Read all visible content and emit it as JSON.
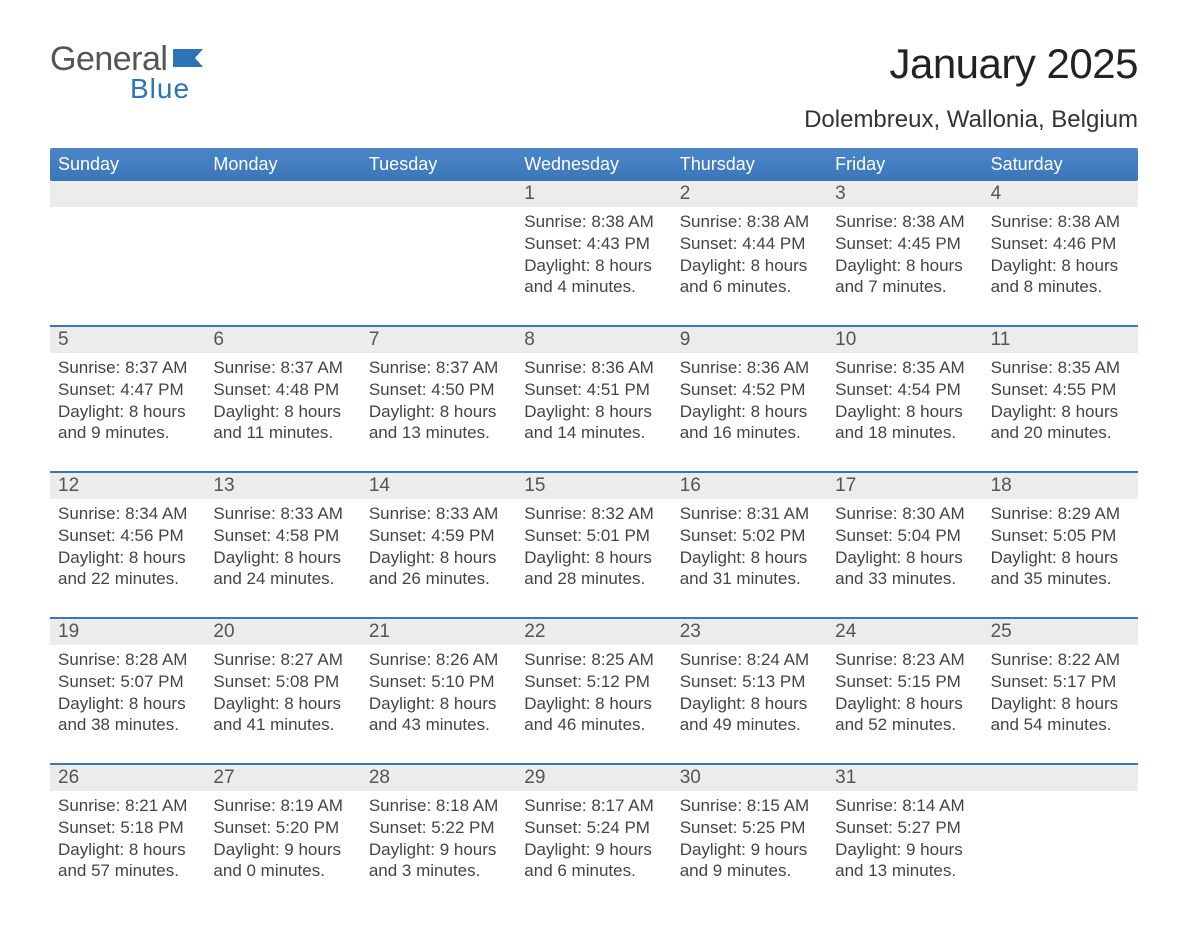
{
  "logo": {
    "word1": "General",
    "word2": "Blue",
    "color_text": "#555555",
    "color_blue": "#2b74b8"
  },
  "title": "January 2025",
  "location": "Dolembreux, Wallonia, Belgium",
  "style": {
    "header_gradient_top": "#4a86c8",
    "header_gradient_bottom": "#3b76b8",
    "divider_color": "#3b76b8",
    "daynum_bg": "#ececec",
    "background": "#ffffff",
    "title_fontsize": 42,
    "location_fontsize": 24,
    "weekday_fontsize": 18,
    "daynum_fontsize": 19,
    "body_fontsize": 17
  },
  "weekdays": [
    "Sunday",
    "Monday",
    "Tuesday",
    "Wednesday",
    "Thursday",
    "Friday",
    "Saturday"
  ],
  "weeks": [
    [
      null,
      null,
      null,
      {
        "n": "1",
        "sunrise": "8:38 AM",
        "sunset": "4:43 PM",
        "daylight": "8 hours and 4 minutes."
      },
      {
        "n": "2",
        "sunrise": "8:38 AM",
        "sunset": "4:44 PM",
        "daylight": "8 hours and 6 minutes."
      },
      {
        "n": "3",
        "sunrise": "8:38 AM",
        "sunset": "4:45 PM",
        "daylight": "8 hours and 7 minutes."
      },
      {
        "n": "4",
        "sunrise": "8:38 AM",
        "sunset": "4:46 PM",
        "daylight": "8 hours and 8 minutes."
      }
    ],
    [
      {
        "n": "5",
        "sunrise": "8:37 AM",
        "sunset": "4:47 PM",
        "daylight": "8 hours and 9 minutes."
      },
      {
        "n": "6",
        "sunrise": "8:37 AM",
        "sunset": "4:48 PM",
        "daylight": "8 hours and 11 minutes."
      },
      {
        "n": "7",
        "sunrise": "8:37 AM",
        "sunset": "4:50 PM",
        "daylight": "8 hours and 13 minutes."
      },
      {
        "n": "8",
        "sunrise": "8:36 AM",
        "sunset": "4:51 PM",
        "daylight": "8 hours and 14 minutes."
      },
      {
        "n": "9",
        "sunrise": "8:36 AM",
        "sunset": "4:52 PM",
        "daylight": "8 hours and 16 minutes."
      },
      {
        "n": "10",
        "sunrise": "8:35 AM",
        "sunset": "4:54 PM",
        "daylight": "8 hours and 18 minutes."
      },
      {
        "n": "11",
        "sunrise": "8:35 AM",
        "sunset": "4:55 PM",
        "daylight": "8 hours and 20 minutes."
      }
    ],
    [
      {
        "n": "12",
        "sunrise": "8:34 AM",
        "sunset": "4:56 PM",
        "daylight": "8 hours and 22 minutes."
      },
      {
        "n": "13",
        "sunrise": "8:33 AM",
        "sunset": "4:58 PM",
        "daylight": "8 hours and 24 minutes."
      },
      {
        "n": "14",
        "sunrise": "8:33 AM",
        "sunset": "4:59 PM",
        "daylight": "8 hours and 26 minutes."
      },
      {
        "n": "15",
        "sunrise": "8:32 AM",
        "sunset": "5:01 PM",
        "daylight": "8 hours and 28 minutes."
      },
      {
        "n": "16",
        "sunrise": "8:31 AM",
        "sunset": "5:02 PM",
        "daylight": "8 hours and 31 minutes."
      },
      {
        "n": "17",
        "sunrise": "8:30 AM",
        "sunset": "5:04 PM",
        "daylight": "8 hours and 33 minutes."
      },
      {
        "n": "18",
        "sunrise": "8:29 AM",
        "sunset": "5:05 PM",
        "daylight": "8 hours and 35 minutes."
      }
    ],
    [
      {
        "n": "19",
        "sunrise": "8:28 AM",
        "sunset": "5:07 PM",
        "daylight": "8 hours and 38 minutes."
      },
      {
        "n": "20",
        "sunrise": "8:27 AM",
        "sunset": "5:08 PM",
        "daylight": "8 hours and 41 minutes."
      },
      {
        "n": "21",
        "sunrise": "8:26 AM",
        "sunset": "5:10 PM",
        "daylight": "8 hours and 43 minutes."
      },
      {
        "n": "22",
        "sunrise": "8:25 AM",
        "sunset": "5:12 PM",
        "daylight": "8 hours and 46 minutes."
      },
      {
        "n": "23",
        "sunrise": "8:24 AM",
        "sunset": "5:13 PM",
        "daylight": "8 hours and 49 minutes."
      },
      {
        "n": "24",
        "sunrise": "8:23 AM",
        "sunset": "5:15 PM",
        "daylight": "8 hours and 52 minutes."
      },
      {
        "n": "25",
        "sunrise": "8:22 AM",
        "sunset": "5:17 PM",
        "daylight": "8 hours and 54 minutes."
      }
    ],
    [
      {
        "n": "26",
        "sunrise": "8:21 AM",
        "sunset": "5:18 PM",
        "daylight": "8 hours and 57 minutes."
      },
      {
        "n": "27",
        "sunrise": "8:19 AM",
        "sunset": "5:20 PM",
        "daylight": "9 hours and 0 minutes."
      },
      {
        "n": "28",
        "sunrise": "8:18 AM",
        "sunset": "5:22 PM",
        "daylight": "9 hours and 3 minutes."
      },
      {
        "n": "29",
        "sunrise": "8:17 AM",
        "sunset": "5:24 PM",
        "daylight": "9 hours and 6 minutes."
      },
      {
        "n": "30",
        "sunrise": "8:15 AM",
        "sunset": "5:25 PM",
        "daylight": "9 hours and 9 minutes."
      },
      {
        "n": "31",
        "sunrise": "8:14 AM",
        "sunset": "5:27 PM",
        "daylight": "9 hours and 13 minutes."
      },
      null
    ]
  ],
  "labels": {
    "sunrise": "Sunrise:",
    "sunset": "Sunset:",
    "daylight": "Daylight:"
  }
}
